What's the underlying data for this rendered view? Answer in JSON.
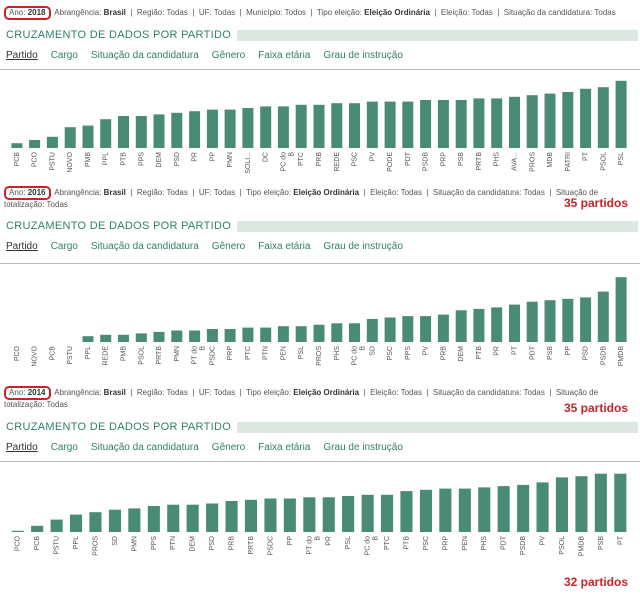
{
  "filters": {
    "ano_label": "Ano:",
    "abrangencia_label": "Abrangência:",
    "abrangencia": "Brasil",
    "regiao": "Região: Todas",
    "uf": "UF: Todas",
    "municipio": "Município: Todos",
    "tipo_label": "Tipo eleição:",
    "tipo": "Eleição Ordinária",
    "eleicao": "Eleição: Todas",
    "situacao": "Situação da candidatura: Todas",
    "totalizacao": "Situação de totalização: Todas"
  },
  "header": {
    "title": "CRUZAMENTO DE DADOS POR PARTIDO"
  },
  "tabs": [
    "Partido",
    "Cargo",
    "Situação da candidatura",
    "Gênero",
    "Faixa etária",
    "Grau de instrução"
  ],
  "chart_data": [
    {
      "type": "bar",
      "year": "2018",
      "count_label": "",
      "categories": [
        "PCB",
        "PCO",
        "PSTU",
        "NOVO",
        "PMB",
        "PPL",
        "PTB",
        "PPS",
        "DEM",
        "PSD",
        "PR",
        "PP",
        "PMN",
        "SOLI...",
        "DC",
        "PC do B",
        "PTC",
        "PRB",
        "REDE",
        "PSC",
        "PV",
        "PODE",
        "PDT",
        "PSDB",
        "PRP",
        "PSB",
        "PRTB",
        "PHS",
        "AVA...",
        "PROS",
        "MDB",
        "PATRI",
        "PT",
        "PSOL",
        "PSL"
      ],
      "values": [
        3,
        5,
        7,
        13,
        14,
        18,
        20,
        20,
        21,
        22,
        23,
        24,
        24,
        25,
        26,
        26,
        27,
        27,
        28,
        28,
        29,
        29,
        29,
        30,
        30,
        30,
        31,
        31,
        32,
        33,
        34,
        35,
        37,
        38,
        42
      ],
      "ylim": [
        0,
        45
      ]
    },
    {
      "type": "bar",
      "year": "2016",
      "count_label": "35 partidos",
      "categories": [
        "PCO",
        "NOVO",
        "PCB",
        "PSTU",
        "PPL",
        "REDE",
        "PMB",
        "PSOL",
        "PRTB",
        "PMN",
        "PT do B",
        "PSDC",
        "PRP",
        "PTC",
        "PTN",
        "PEN",
        "PSL",
        "PROS",
        "PHS",
        "PC do B",
        "SD",
        "PSC",
        "PPS",
        "PV",
        "PRB",
        "DEM",
        "PTB",
        "PR",
        "PT",
        "PDT",
        "PSB",
        "PP",
        "PSD",
        "PSDB",
        "PMDB"
      ],
      "values": [
        0,
        0,
        0,
        0,
        4,
        5,
        5,
        6,
        7,
        8,
        8,
        9,
        9,
        10,
        10,
        11,
        11,
        12,
        13,
        13,
        16,
        17,
        18,
        18,
        19,
        22,
        23,
        24,
        26,
        28,
        29,
        30,
        31,
        35,
        45
      ],
      "ylim": [
        0,
        50
      ]
    },
    {
      "type": "bar",
      "year": "2014",
      "count_label": "32 partidos",
      "categories": [
        "PCO",
        "PCB",
        "PSTU",
        "PPL",
        "PROS",
        "SD",
        "PMN",
        "PPS",
        "PTN",
        "DEM",
        "PSD",
        "PRB",
        "PRTB",
        "PSDC",
        "PP",
        "PT do B",
        "PR",
        "PSL",
        "PC do B",
        "PTC",
        "PTB",
        "PSC",
        "PRP",
        "PEN",
        "PHS",
        "PDT",
        "PSDB",
        "PV",
        "PSOL",
        "PMDB",
        "PSB",
        "PT"
      ],
      "values": [
        1,
        5,
        10,
        14,
        16,
        18,
        19,
        21,
        22,
        22,
        23,
        25,
        26,
        27,
        27,
        28,
        28,
        29,
        30,
        30,
        33,
        34,
        35,
        35,
        36,
        37,
        38,
        40,
        44,
        45,
        47,
        47
      ],
      "ylim": [
        0,
        50
      ]
    }
  ]
}
